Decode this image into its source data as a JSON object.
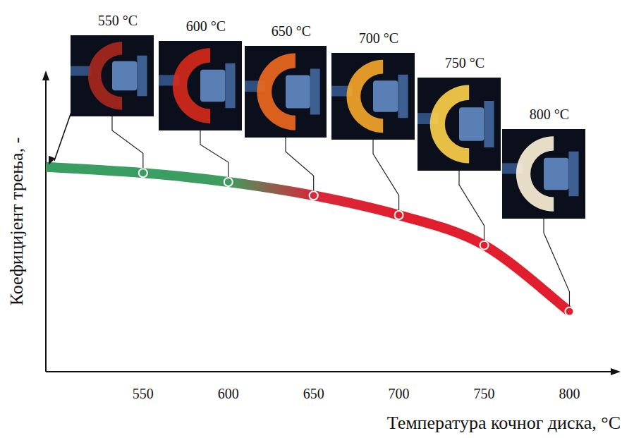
{
  "chart_data": {
    "type": "line",
    "x_label": "Температура кочног диска, °C",
    "y_label": "Коефицијент трења, -",
    "x": [
      493,
      550,
      600,
      650,
      700,
      750,
      800
    ],
    "series": [
      {
        "name": "Коефицијент трења",
        "colors": [
          "#3a9e62",
          "#3a9e62",
          "#3f9c5f",
          "#d8283a",
          "#e01e2d",
          "#e01e2d",
          "#e01e2d"
        ],
        "values": [
          0.68,
          0.66,
          0.63,
          0.585,
          0.52,
          0.42,
          0.2
        ]
      }
    ],
    "annotations": [
      {
        "x": 550,
        "text": "550 °C"
      },
      {
        "x": 600,
        "text": "600 °C"
      },
      {
        "x": 650,
        "text": "650 °C"
      },
      {
        "x": 700,
        "text": "700 °C"
      },
      {
        "x": 750,
        "text": "750 °C"
      },
      {
        "x": 800,
        "text": "800 °C"
      }
    ],
    "xlim": [
      493,
      830
    ],
    "ylim": [
      0,
      1
    ],
    "xticks": [
      550,
      600,
      650,
      700,
      750,
      800
    ],
    "tick_labels": "x",
    "grid": false
  }
}
